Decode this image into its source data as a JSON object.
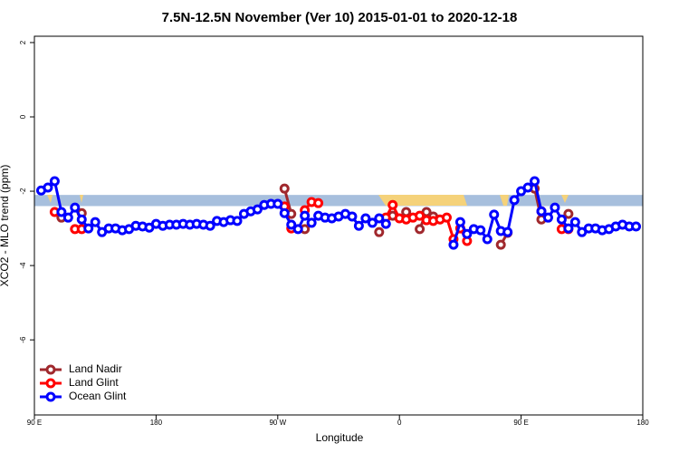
{
  "chart_data": {
    "type": "line",
    "title": "7.5N-12.5N November (Ver 10)   2015-01-01 to 2020-12-18",
    "x_label": "Longitude",
    "y_label": "XCO2 - MLO trend (ppm)",
    "xlim": [
      90,
      540
    ],
    "xticks": [
      {
        "value": 90,
        "label": "90 E"
      },
      {
        "value": 180,
        "label": "180"
      },
      {
        "value": 270,
        "label": "90 W"
      },
      {
        "value": 360,
        "label": "0"
      },
      {
        "value": 450,
        "label": "90 E"
      },
      {
        "value": 540,
        "label": "180"
      }
    ],
    "ylim": [
      -8.02,
      2.17
    ],
    "yticks": [
      -6,
      -4,
      -2,
      0,
      2
    ],
    "legend": "bottom-left",
    "reference_band": {
      "ymin": -2.4,
      "ymax": -2.1,
      "color": "#a7bfdd"
    },
    "x": [
      95,
      100,
      105,
      110,
      115,
      120,
      125,
      130,
      135,
      140,
      145,
      150,
      155,
      160,
      165,
      170,
      175,
      180,
      185,
      190,
      195,
      200,
      205,
      210,
      215,
      220,
      225,
      230,
      235,
      240,
      245,
      250,
      255,
      260,
      265,
      270,
      275,
      280,
      285,
      290,
      295,
      300,
      305,
      310,
      315,
      320,
      325,
      330,
      335,
      340,
      345,
      350,
      355,
      360,
      365,
      370,
      375,
      380,
      385,
      390,
      395,
      400,
      405,
      410,
      415,
      420,
      425,
      430,
      435,
      440,
      445,
      450,
      455,
      460,
      465,
      470,
      475,
      480,
      485,
      490,
      495,
      500,
      505,
      510,
      515,
      520,
      525,
      530,
      535
    ],
    "series": [
      {
        "name": "Land Nadir",
        "color": "#a0282d",
        "values": [
          null,
          null,
          null,
          -2.71,
          null,
          null,
          -2.59,
          null,
          null,
          null,
          null,
          null,
          null,
          null,
          null,
          null,
          null,
          null,
          null,
          null,
          null,
          null,
          null,
          null,
          null,
          null,
          null,
          null,
          null,
          null,
          null,
          null,
          null,
          null,
          null,
          null,
          -1.93,
          -2.61,
          null,
          -3.02,
          null,
          null,
          null,
          null,
          null,
          null,
          null,
          null,
          null,
          null,
          -3.1,
          null,
          -2.66,
          null,
          -2.56,
          null,
          -3.02,
          -2.56,
          -2.68,
          null,
          null,
          null,
          null,
          null,
          null,
          null,
          null,
          null,
          -3.44,
          -3.12,
          null,
          null,
          null,
          -1.93,
          -2.76,
          null,
          null,
          null,
          -2.61,
          null,
          null,
          null,
          null,
          null,
          null,
          null,
          null,
          null,
          null
        ]
      },
      {
        "name": "Land Glint",
        "color": "#ff0000",
        "values": [
          null,
          null,
          -2.56,
          null,
          null,
          -3.02,
          -3.02,
          null,
          null,
          null,
          null,
          null,
          null,
          null,
          null,
          null,
          null,
          null,
          null,
          null,
          null,
          null,
          null,
          null,
          null,
          null,
          null,
          null,
          null,
          null,
          null,
          null,
          null,
          null,
          null,
          null,
          -2.41,
          -3.0,
          null,
          -2.51,
          -2.29,
          -2.32,
          null,
          null,
          null,
          null,
          null,
          null,
          null,
          null,
          null,
          -2.71,
          -2.37,
          -2.73,
          -2.76,
          -2.71,
          -2.66,
          -2.78,
          -2.8,
          -2.76,
          -2.71,
          -3.29,
          -3.0,
          -3.34,
          null,
          null,
          null,
          null,
          null,
          null,
          null,
          null,
          null,
          null,
          -2.54,
          null,
          null,
          -3.02,
          -3.02,
          null,
          null,
          null,
          null,
          null,
          null,
          null,
          null,
          null,
          null
        ]
      },
      {
        "name": "Ocean Glint",
        "color": "#0000ff",
        "values": [
          -1.98,
          -1.9,
          -1.73,
          -2.56,
          -2.71,
          -2.44,
          -2.76,
          -3.0,
          -2.83,
          -3.1,
          -3.0,
          -3.0,
          -3.05,
          -3.02,
          -2.93,
          -2.95,
          -2.98,
          -2.88,
          -2.93,
          -2.9,
          -2.9,
          -2.88,
          -2.9,
          -2.88,
          -2.9,
          -2.93,
          -2.8,
          -2.83,
          -2.78,
          -2.8,
          -2.61,
          -2.54,
          -2.49,
          -2.37,
          -2.34,
          -2.34,
          -2.59,
          -2.9,
          -3.02,
          -2.66,
          -2.85,
          -2.66,
          -2.71,
          -2.73,
          -2.68,
          -2.61,
          -2.68,
          -2.93,
          -2.73,
          -2.85,
          -2.73,
          -2.88,
          null,
          null,
          null,
          null,
          null,
          null,
          null,
          null,
          null,
          -3.44,
          -2.83,
          -3.15,
          -3.02,
          -3.05,
          -3.29,
          -2.63,
          -3.07,
          -3.1,
          -2.24,
          -2.0,
          -1.9,
          -1.73,
          -2.54,
          -2.71,
          -2.44,
          -2.76,
          -3.0,
          -2.83,
          -3.1,
          -3.0,
          -3.0,
          -3.05,
          -3.02,
          -2.95,
          -2.9,
          -2.95,
          -2.95
        ]
      }
    ]
  }
}
